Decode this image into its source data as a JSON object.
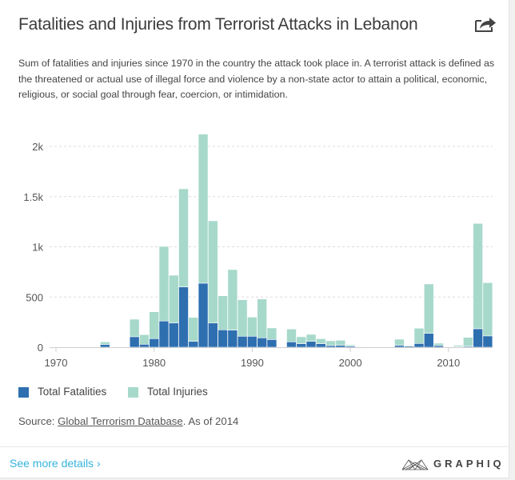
{
  "header": {
    "title": "Fatalities and Injuries from Terrorist Attacks in Lebanon",
    "share_icon": "share-arrow-icon",
    "subtitle": "Sum of fatalities and injuries since 1970 in the country the attack took place in. A terrorist attack is defined as the threatened or actual use of illegal force and violence by a non-state actor to attain a political, economic, religious, or social goal through fear, coercion, or intimidation."
  },
  "legend": {
    "items": [
      {
        "label": "Total Fatalities",
        "color": "#2e6fb0"
      },
      {
        "label": "Total Injuries",
        "color": "#a7d9cb"
      }
    ]
  },
  "source": {
    "prefix": "Source: ",
    "link_text": "Global Terrorism Database",
    "suffix": ". As of 2014"
  },
  "footer": {
    "more_link": "See more details ›",
    "brand": "GRAPHIQ"
  },
  "chart_data": {
    "type": "bar",
    "stacked": true,
    "title": "Fatalities and Injuries from Terrorist Attacks in Lebanon",
    "xlabel": "",
    "ylabel": "",
    "x_ticks": [
      1970,
      1980,
      1990,
      2000,
      2010
    ],
    "x_range": [
      1970,
      2014
    ],
    "y_ticks": [
      0,
      500,
      1000,
      1500,
      2000
    ],
    "y_tick_labels": [
      "0",
      "500",
      "1k",
      "1.5k",
      "2k"
    ],
    "ylim": [
      0,
      2000
    ],
    "grid": true,
    "legend_position": "bottom-left",
    "categories": [
      1973,
      1974,
      1975,
      1976,
      1977,
      1978,
      1979,
      1980,
      1981,
      1982,
      1983,
      1984,
      1985,
      1986,
      1987,
      1988,
      1989,
      1990,
      1991,
      1992,
      1994,
      1995,
      1996,
      1997,
      1998,
      1999,
      2000,
      2001,
      2002,
      2003,
      2005,
      2006,
      2007,
      2008,
      2009,
      2010,
      2011,
      2012,
      2013,
      2014
    ],
    "series": [
      {
        "name": "Total Fatalities",
        "color": "#2e6fb0",
        "values": [
          5,
          2,
          27,
          3,
          2,
          104,
          29,
          85,
          261,
          241,
          600,
          58,
          637,
          241,
          173,
          170,
          109,
          109,
          93,
          76,
          53,
          35,
          58,
          35,
          16,
          19,
          11,
          5,
          2,
          2,
          18,
          10,
          37,
          138,
          16,
          2,
          5,
          8,
          183,
          112
        ]
      },
      {
        "name": "Total Injuries",
        "color": "#a7d9cb",
        "values": [
          2,
          5,
          26,
          2,
          3,
          175,
          96,
          268,
          743,
          476,
          978,
          239,
          1485,
          1018,
          339,
          603,
          364,
          191,
          387,
          116,
          128,
          69,
          70,
          50,
          48,
          50,
          13,
          2,
          1,
          1,
          62,
          8,
          152,
          492,
          24,
          3,
          14,
          90,
          1050,
          531
        ]
      }
    ]
  }
}
